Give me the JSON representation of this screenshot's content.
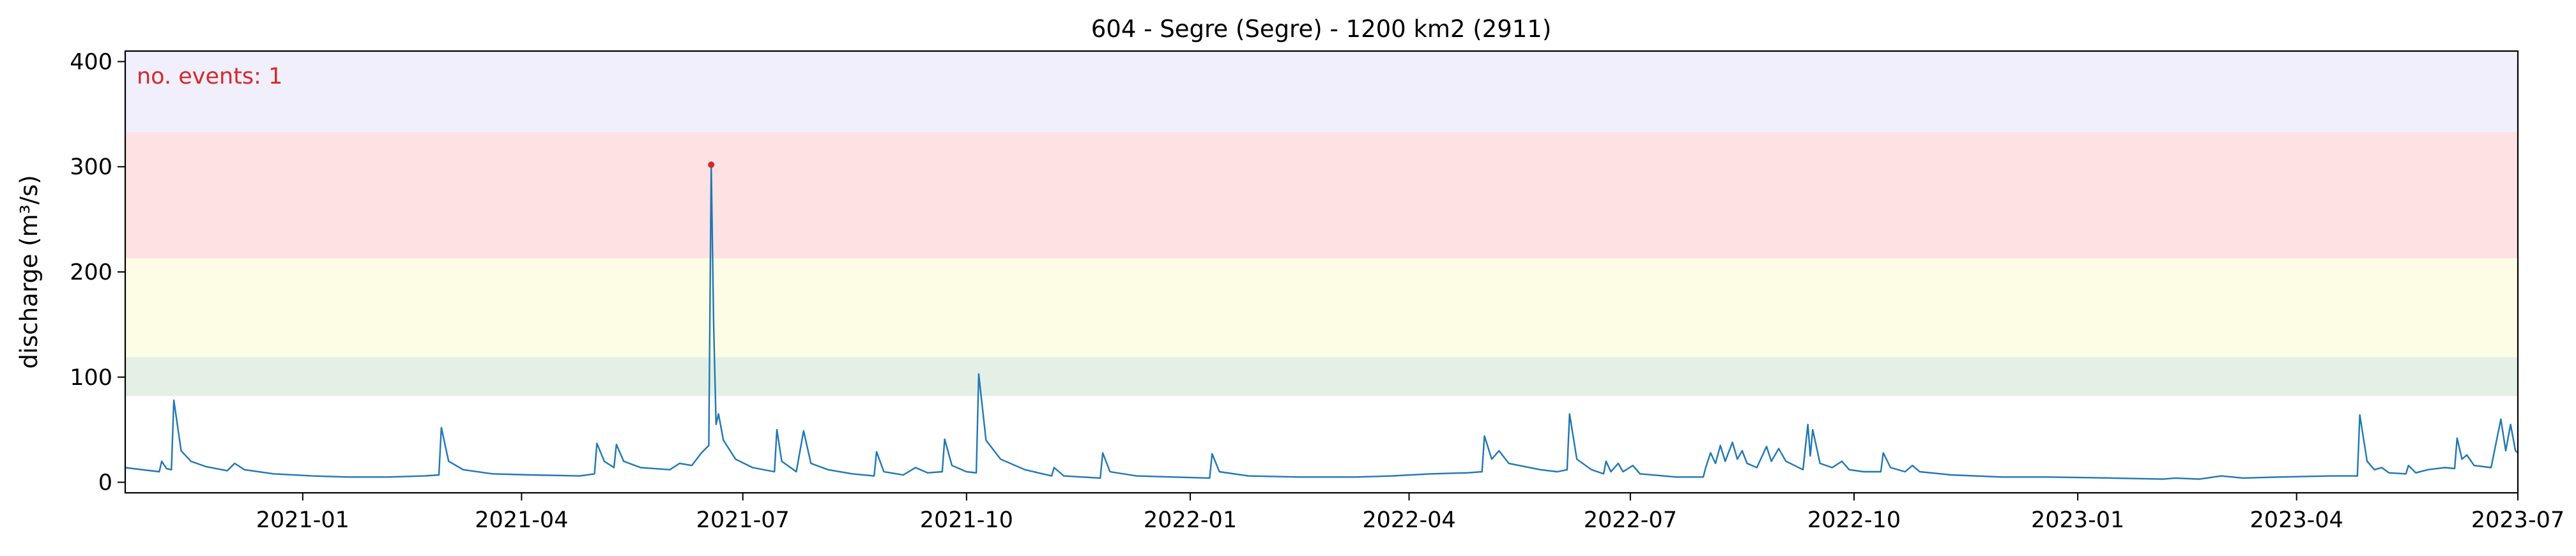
{
  "chart_data": {
    "type": "line",
    "title": "604 - Segre (Segre) - 1200 km2 (2911)",
    "xlabel": "",
    "ylabel": "discharge (m³/s)",
    "xlim": [
      "2020-10-20",
      "2023-07-01"
    ],
    "ylim": [
      -10,
      410
    ],
    "yticks": [
      0,
      100,
      200,
      300,
      400
    ],
    "xticks": [
      "2021-01",
      "2021-04",
      "2021-07",
      "2021-10",
      "2022-01",
      "2022-04",
      "2022-07",
      "2022-10",
      "2023-01",
      "2023-04",
      "2023-07"
    ],
    "grid": false,
    "threshold_bands": [
      {
        "from": 82,
        "to": 119,
        "color": "#e4f0e6"
      },
      {
        "from": 119,
        "to": 213,
        "color": "#fdfde6"
      },
      {
        "from": 213,
        "to": 333,
        "color": "#fde2e4"
      },
      {
        "from": 333,
        "to": 410,
        "color": "#f1effb"
      }
    ],
    "series": [
      {
        "color": "#1f77b4",
        "points": [
          [
            "2020-10-20",
            14
          ],
          [
            "2020-10-27",
            12
          ],
          [
            "2020-11-03",
            10
          ],
          [
            "2020-11-04",
            20
          ],
          [
            "2020-11-06",
            13
          ],
          [
            "2020-11-08",
            12
          ],
          [
            "2020-11-09",
            78
          ],
          [
            "2020-11-12",
            30
          ],
          [
            "2020-11-16",
            20
          ],
          [
            "2020-11-22",
            15
          ],
          [
            "2020-12-01",
            11
          ],
          [
            "2020-12-04",
            18
          ],
          [
            "2020-12-08",
            12
          ],
          [
            "2020-12-20",
            8
          ],
          [
            "2021-01-05",
            6
          ],
          [
            "2021-01-20",
            5
          ],
          [
            "2021-02-05",
            5
          ],
          [
            "2021-02-20",
            6
          ],
          [
            "2021-02-26",
            7
          ],
          [
            "2021-02-27",
            52
          ],
          [
            "2021-03-02",
            20
          ],
          [
            "2021-03-08",
            12
          ],
          [
            "2021-03-20",
            8
          ],
          [
            "2021-04-05",
            7
          ],
          [
            "2021-04-25",
            6
          ],
          [
            "2021-05-01",
            8
          ],
          [
            "2021-05-02",
            37
          ],
          [
            "2021-05-05",
            20
          ],
          [
            "2021-05-09",
            14
          ],
          [
            "2021-05-10",
            36
          ],
          [
            "2021-05-13",
            20
          ],
          [
            "2021-05-20",
            14
          ],
          [
            "2021-06-01",
            12
          ],
          [
            "2021-06-05",
            18
          ],
          [
            "2021-06-10",
            16
          ],
          [
            "2021-06-14",
            28
          ],
          [
            "2021-06-17",
            35
          ],
          [
            "2021-06-18",
            302
          ],
          [
            "2021-06-19",
            150
          ],
          [
            "2021-06-20",
            55
          ],
          [
            "2021-06-21",
            65
          ],
          [
            "2021-06-23",
            40
          ],
          [
            "2021-06-28",
            22
          ],
          [
            "2021-07-05",
            14
          ],
          [
            "2021-07-14",
            10
          ],
          [
            "2021-07-15",
            50
          ],
          [
            "2021-07-17",
            20
          ],
          [
            "2021-07-23",
            10
          ],
          [
            "2021-07-26",
            49
          ],
          [
            "2021-07-29",
            18
          ],
          [
            "2021-08-05",
            12
          ],
          [
            "2021-08-15",
            8
          ],
          [
            "2021-08-24",
            6
          ],
          [
            "2021-08-25",
            29
          ],
          [
            "2021-08-28",
            10
          ],
          [
            "2021-09-05",
            7
          ],
          [
            "2021-09-10",
            14
          ],
          [
            "2021-09-15",
            9
          ],
          [
            "2021-09-21",
            10
          ],
          [
            "2021-09-22",
            41
          ],
          [
            "2021-09-25",
            16
          ],
          [
            "2021-10-01",
            10
          ],
          [
            "2021-10-05",
            9
          ],
          [
            "2021-10-06",
            103
          ],
          [
            "2021-10-09",
            40
          ],
          [
            "2021-10-15",
            22
          ],
          [
            "2021-10-25",
            12
          ],
          [
            "2021-11-05",
            6
          ],
          [
            "2021-11-06",
            14
          ],
          [
            "2021-11-10",
            6
          ],
          [
            "2021-11-25",
            4
          ],
          [
            "2021-11-26",
            28
          ],
          [
            "2021-11-29",
            10
          ],
          [
            "2021-12-10",
            6
          ],
          [
            "2021-12-25",
            5
          ],
          [
            "2022-01-09",
            4
          ],
          [
            "2022-01-10",
            27
          ],
          [
            "2022-01-13",
            10
          ],
          [
            "2022-01-25",
            6
          ],
          [
            "2022-02-15",
            5
          ],
          [
            "2022-03-10",
            5
          ],
          [
            "2022-03-25",
            6
          ],
          [
            "2022-04-10",
            8
          ],
          [
            "2022-04-25",
            9
          ],
          [
            "2022-05-01",
            10
          ],
          [
            "2022-05-02",
            44
          ],
          [
            "2022-05-05",
            22
          ],
          [
            "2022-05-08",
            30
          ],
          [
            "2022-05-12",
            18
          ],
          [
            "2022-05-25",
            12
          ],
          [
            "2022-06-01",
            10
          ],
          [
            "2022-06-05",
            12
          ],
          [
            "2022-06-06",
            65
          ],
          [
            "2022-06-09",
            22
          ],
          [
            "2022-06-15",
            12
          ],
          [
            "2022-06-20",
            8
          ],
          [
            "2022-06-21",
            20
          ],
          [
            "2022-06-23",
            10
          ],
          [
            "2022-06-26",
            18
          ],
          [
            "2022-06-28",
            10
          ],
          [
            "2022-07-02",
            16
          ],
          [
            "2022-07-05",
            8
          ],
          [
            "2022-07-20",
            5
          ],
          [
            "2022-07-31",
            5
          ],
          [
            "2022-08-01",
            14
          ],
          [
            "2022-08-03",
            28
          ],
          [
            "2022-08-05",
            18
          ],
          [
            "2022-08-07",
            35
          ],
          [
            "2022-08-09",
            20
          ],
          [
            "2022-08-12",
            38
          ],
          [
            "2022-08-14",
            22
          ],
          [
            "2022-08-16",
            30
          ],
          [
            "2022-08-18",
            18
          ],
          [
            "2022-08-22",
            14
          ],
          [
            "2022-08-26",
            34
          ],
          [
            "2022-08-28",
            20
          ],
          [
            "2022-08-31",
            32
          ],
          [
            "2022-09-03",
            20
          ],
          [
            "2022-09-10",
            12
          ],
          [
            "2022-09-12",
            55
          ],
          [
            "2022-09-13",
            25
          ],
          [
            "2022-09-14",
            50
          ],
          [
            "2022-09-17",
            18
          ],
          [
            "2022-09-22",
            14
          ],
          [
            "2022-09-26",
            20
          ],
          [
            "2022-09-29",
            12
          ],
          [
            "2022-10-05",
            10
          ],
          [
            "2022-10-12",
            10
          ],
          [
            "2022-10-13",
            28
          ],
          [
            "2022-10-16",
            14
          ],
          [
            "2022-10-22",
            10
          ],
          [
            "2022-10-25",
            16
          ],
          [
            "2022-10-28",
            10
          ],
          [
            "2022-11-10",
            7
          ],
          [
            "2022-12-01",
            5
          ],
          [
            "2022-12-20",
            5
          ],
          [
            "2023-01-15",
            4
          ],
          [
            "2023-02-05",
            3
          ],
          [
            "2023-02-10",
            4
          ],
          [
            "2023-02-20",
            3
          ],
          [
            "2023-03-01",
            6
          ],
          [
            "2023-03-10",
            4
          ],
          [
            "2023-03-25",
            5
          ],
          [
            "2023-04-15",
            6
          ],
          [
            "2023-04-26",
            6
          ],
          [
            "2023-04-27",
            64
          ],
          [
            "2023-04-30",
            20
          ],
          [
            "2023-05-03",
            12
          ],
          [
            "2023-05-06",
            14
          ],
          [
            "2023-05-09",
            9
          ],
          [
            "2023-05-16",
            8
          ],
          [
            "2023-05-17",
            16
          ],
          [
            "2023-05-20",
            9
          ],
          [
            "2023-05-25",
            12
          ],
          [
            "2023-06-01",
            14
          ],
          [
            "2023-06-05",
            13
          ],
          [
            "2023-06-06",
            42
          ],
          [
            "2023-06-08",
            22
          ],
          [
            "2023-06-10",
            26
          ],
          [
            "2023-06-13",
            16
          ],
          [
            "2023-06-20",
            14
          ],
          [
            "2023-06-24",
            60
          ],
          [
            "2023-06-26",
            30
          ],
          [
            "2023-06-28",
            55
          ],
          [
            "2023-06-30",
            30
          ],
          [
            "2023-07-01",
            28
          ]
        ]
      }
    ],
    "events": [
      {
        "x": "2021-06-18",
        "y": 302,
        "color": "#d62728"
      }
    ],
    "annotation": {
      "text": "no. events: 1",
      "color": "#d62728",
      "position": "top-left"
    }
  }
}
